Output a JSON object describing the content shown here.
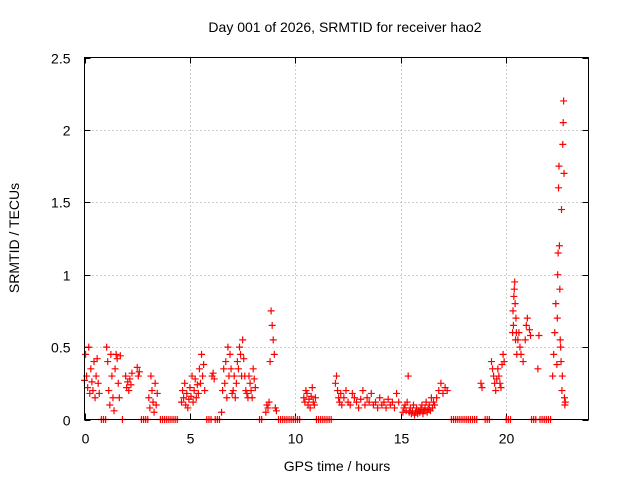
{
  "chart_data": {
    "type": "scatter",
    "title": "Day 001 of 2026, SRMTID for receiver hao2",
    "xlabel": "GPS time / hours",
    "ylabel": "SRMTID / TECUs",
    "xlim": [
      0,
      23.9
    ],
    "ylim": [
      0,
      2.5
    ],
    "xticks": [
      0,
      5,
      10,
      15,
      20
    ],
    "xtick_labels": [
      "0",
      "5",
      "10",
      "15",
      "20"
    ],
    "yticks": [
      0,
      0.5,
      1,
      1.5,
      2,
      2.5
    ],
    "ytick_labels": [
      "0",
      "0.5",
      "1",
      "1.5",
      "2",
      "2.5"
    ],
    "grid": true,
    "marker": "plus",
    "color": "#ff0000",
    "series": [
      {
        "name": "SRMTID",
        "x": [
          0.0,
          0.05,
          0.1,
          0.15,
          0.2,
          0.25,
          0.3,
          0.35,
          0.4,
          0.45,
          0.5,
          0.55,
          0.6,
          0.65,
          0.7,
          1.05,
          1.1,
          1.15,
          1.2,
          1.25,
          1.3,
          1.35,
          1.4,
          1.45,
          1.5,
          1.55,
          1.6,
          1.65,
          1.7,
          1.95,
          2.0,
          2.05,
          2.1,
          2.15,
          2.2,
          2.25,
          2.5,
          2.55,
          2.6,
          3.05,
          3.1,
          3.15,
          3.2,
          3.25,
          3.3,
          3.35,
          3.4,
          3.45,
          4.6,
          4.65,
          4.7,
          4.75,
          4.8,
          4.85,
          4.9,
          4.95,
          5.0,
          5.05,
          5.1,
          5.15,
          5.2,
          5.25,
          5.3,
          5.35,
          5.4,
          5.45,
          5.5,
          5.55,
          5.6,
          5.65,
          5.7,
          6.05,
          6.1,
          6.15,
          6.5,
          6.55,
          6.6,
          6.65,
          6.7,
          6.75,
          6.8,
          6.85,
          6.9,
          6.95,
          7.0,
          7.05,
          7.1,
          7.15,
          7.2,
          7.25,
          7.3,
          7.35,
          7.4,
          7.45,
          7.5,
          7.55,
          7.6,
          7.65,
          7.7,
          7.75,
          7.8,
          7.85,
          7.9,
          7.95,
          8.0,
          8.05,
          8.1,
          8.6,
          8.65,
          8.7,
          8.75,
          8.8,
          8.85,
          8.9,
          8.95,
          9.0,
          9.05,
          9.1,
          10.4,
          10.45,
          10.5,
          10.55,
          10.6,
          10.65,
          10.7,
          10.75,
          10.8,
          10.85,
          10.9,
          10.95,
          11.9,
          11.95,
          12.0,
          12.05,
          12.1,
          12.15,
          12.2,
          12.3,
          12.4,
          12.5,
          12.6,
          12.7,
          12.8,
          12.9,
          13.0,
          13.1,
          13.2,
          13.3,
          13.4,
          13.5,
          13.6,
          13.7,
          13.8,
          13.9,
          14.0,
          14.1,
          14.2,
          14.3,
          14.4,
          14.5,
          14.6,
          14.7,
          14.8,
          14.9,
          15.1,
          15.15,
          15.2,
          15.25,
          15.3,
          15.35,
          15.4,
          15.45,
          15.5,
          15.55,
          15.6,
          15.65,
          15.7,
          15.75,
          15.8,
          15.85,
          15.9,
          15.95,
          16.0,
          16.05,
          16.1,
          16.15,
          16.2,
          16.25,
          16.3,
          16.35,
          16.4,
          16.45,
          16.5,
          16.55,
          16.6,
          16.7,
          16.8,
          16.9,
          17.0,
          17.1,
          17.2,
          18.8,
          18.85,
          19.3,
          19.35,
          19.4,
          19.45,
          19.5,
          19.55,
          19.6,
          19.65,
          19.7,
          19.75,
          19.8,
          19.85,
          19.9,
          20.3,
          20.32,
          20.34,
          20.36,
          20.38,
          20.4,
          20.42,
          20.44,
          20.46,
          20.48,
          20.5,
          20.55,
          20.6,
          20.65,
          20.7,
          20.8,
          20.9,
          20.95,
          21.0,
          21.1,
          21.15,
          21.5,
          21.55,
          22.2,
          22.25,
          22.3,
          22.35,
          22.4,
          22.42,
          22.44,
          22.46,
          22.48,
          22.5,
          22.52,
          22.54,
          22.56,
          22.58,
          22.6,
          22.62,
          22.64,
          22.66,
          22.68,
          22.7,
          22.72,
          22.74,
          22.76,
          22.78,
          22.8,
          0.8,
          0.9,
          1.0,
          1.8,
          2.7,
          2.8,
          2.9,
          3.0,
          3.6,
          3.7,
          3.8,
          3.9,
          4.0,
          4.1,
          4.2,
          4.3,
          4.4,
          5.8,
          5.9,
          6.0,
          6.2,
          6.3,
          6.4,
          8.3,
          8.4,
          9.2,
          9.3,
          9.4,
          9.5,
          9.6,
          9.7,
          9.8,
          9.9,
          10.0,
          10.1,
          10.2,
          11.0,
          11.1,
          11.2,
          11.3,
          11.4,
          11.5,
          11.6,
          11.7,
          17.4,
          17.5,
          17.6,
          17.7,
          17.8,
          17.9,
          18.0,
          18.1,
          18.2,
          18.3,
          18.4,
          18.5,
          18.6,
          19.0,
          19.1,
          19.2,
          20.0,
          20.1,
          20.2,
          21.2,
          21.3,
          21.4,
          21.6,
          21.7,
          21.8,
          21.9,
          22.0,
          22.1
        ],
        "y": [
          0.27,
          0.45,
          0.3,
          0.22,
          0.5,
          0.18,
          0.35,
          0.26,
          0.2,
          0.4,
          0.15,
          0.3,
          0.42,
          0.25,
          0.18,
          0.5,
          0.4,
          0.2,
          0.1,
          0.45,
          0.3,
          0.15,
          0.06,
          0.35,
          0.45,
          0.42,
          0.25,
          0.15,
          0.44,
          0.3,
          0.22,
          0.26,
          0.2,
          0.28,
          0.24,
          0.32,
          0.36,
          0.3,
          0.33,
          0.15,
          0.08,
          0.3,
          0.2,
          0.12,
          0.05,
          0.25,
          0.1,
          0.18,
          0.12,
          0.2,
          0.15,
          0.25,
          0.1,
          0.18,
          0.08,
          0.14,
          0.22,
          0.16,
          0.3,
          0.12,
          0.2,
          0.28,
          0.15,
          0.24,
          0.18,
          0.35,
          0.25,
          0.45,
          0.3,
          0.38,
          0.2,
          0.3,
          0.32,
          0.28,
          0.05,
          0.2,
          0.35,
          0.25,
          0.4,
          0.15,
          0.5,
          0.3,
          0.45,
          0.35,
          0.18,
          0.2,
          0.3,
          0.15,
          0.25,
          0.4,
          0.35,
          0.5,
          0.45,
          0.3,
          0.55,
          0.42,
          0.3,
          0.2,
          0.18,
          0.15,
          0.3,
          0.25,
          0.2,
          0.15,
          0.35,
          0.28,
          0.22,
          0.05,
          0.1,
          0.08,
          0.12,
          0.4,
          0.75,
          0.65,
          0.55,
          0.45,
          0.08,
          0.06,
          0.15,
          0.12,
          0.2,
          0.18,
          0.1,
          0.14,
          0.08,
          0.16,
          0.22,
          0.12,
          0.1,
          0.15,
          0.25,
          0.3,
          0.2,
          0.15,
          0.12,
          0.18,
          0.1,
          0.15,
          0.2,
          0.12,
          0.1,
          0.18,
          0.15,
          0.12,
          0.08,
          0.14,
          0.2,
          0.1,
          0.15,
          0.12,
          0.18,
          0.1,
          0.12,
          0.08,
          0.15,
          0.1,
          0.12,
          0.08,
          0.14,
          0.1,
          0.12,
          0.08,
          0.18,
          0.12,
          0.05,
          0.08,
          0.1,
          0.06,
          0.12,
          0.3,
          0.05,
          0.08,
          0.04,
          0.06,
          0.1,
          0.03,
          0.05,
          0.08,
          0.04,
          0.06,
          0.05,
          0.07,
          0.1,
          0.04,
          0.06,
          0.08,
          0.12,
          0.05,
          0.07,
          0.1,
          0.06,
          0.15,
          0.08,
          0.12,
          0.1,
          0.15,
          0.2,
          0.25,
          0.18,
          0.22,
          0.2,
          0.25,
          0.22,
          0.4,
          0.35,
          0.3,
          0.25,
          0.2,
          0.28,
          0.35,
          0.3,
          0.25,
          0.22,
          0.38,
          0.45,
          0.4,
          0.6,
          0.75,
          0.65,
          0.85,
          0.9,
          0.95,
          0.8,
          0.55,
          0.7,
          0.6,
          0.45,
          0.55,
          0.6,
          0.5,
          0.45,
          0.4,
          0.55,
          0.65,
          0.7,
          0.62,
          0.58,
          0.35,
          0.58,
          0.3,
          0.45,
          0.6,
          0.8,
          0.38,
          0.7,
          1.0,
          1.15,
          1.6,
          1.75,
          1.2,
          0.9,
          0.55,
          0.5,
          0.4,
          1.45,
          0.2,
          0.3,
          1.9,
          2.05,
          2.2,
          1.7,
          0.15,
          0.1,
          0.12,
          0.0,
          0.0,
          0.0,
          0.0,
          0.0,
          0.0,
          0.0,
          0.0,
          0.0,
          0.0,
          0.0,
          0.0,
          0.0,
          0.0,
          0.0,
          0.0,
          0.0,
          0.0,
          0.0,
          0.0,
          0.0,
          0.0,
          0.0,
          0.0,
          0.0,
          0.0,
          0.0,
          0.0,
          0.0,
          0.0,
          0.0,
          0.0,
          0.0,
          0.0,
          0.0,
          0.0,
          0.0,
          0.0,
          0.0,
          0.0,
          0.0,
          0.0,
          0.0,
          0.0,
          0.0,
          0.0,
          0.0,
          0.0,
          0.0,
          0.0,
          0.0,
          0.0,
          0.0,
          0.0,
          0.0,
          0.0,
          0.0,
          0.0,
          0.0,
          0.0,
          0.0,
          0.0,
          0.0,
          0.0,
          0.0,
          0.0,
          0.0,
          0.0,
          0.0,
          0.0,
          0.0,
          0.0
        ]
      }
    ]
  }
}
